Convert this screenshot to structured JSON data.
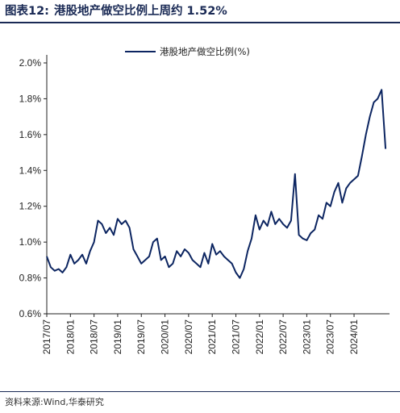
{
  "figure": {
    "label": "图表12:",
    "title": "港股地产做空比例上周约 1.52%",
    "source": "资料来源:Wind,华泰研究"
  },
  "colors": {
    "line": "#0c2561",
    "axis": "#222222",
    "title": "#1a2a55"
  },
  "chart_data": {
    "type": "line",
    "title": "",
    "xlabel": "",
    "ylabel": "",
    "ylim": [
      0.6,
      2.0
    ],
    "y_tick_labels": [
      "0.6%",
      "0.8%",
      "1.0%",
      "1.2%",
      "1.4%",
      "1.6%",
      "1.8%",
      "2.0%"
    ],
    "y_ticks": [
      0.6,
      0.8,
      1.0,
      1.2,
      1.4,
      1.6,
      1.8,
      2.0
    ],
    "x_tick_labels": [
      "2017/07",
      "2018/01",
      "2018/07",
      "2019/01",
      "2019/07",
      "2020/01",
      "2020/07",
      "2021/01",
      "2021/07",
      "2022/01",
      "2022/07",
      "2023/01",
      "2023/07",
      "2024/01"
    ],
    "xlim": [
      "2017-07",
      "2024-10"
    ],
    "grid": false,
    "legend_position": "top-center",
    "series": [
      {
        "name": "港股地产做空比例(%)",
        "x": [
          "2017-07",
          "2017-08",
          "2017-09",
          "2017-10",
          "2017-11",
          "2017-12",
          "2018-01",
          "2018-02",
          "2018-03",
          "2018-04",
          "2018-05",
          "2018-06",
          "2018-07",
          "2018-08",
          "2018-09",
          "2018-10",
          "2018-11",
          "2018-12",
          "2019-01",
          "2019-02",
          "2019-03",
          "2019-04",
          "2019-05",
          "2019-06",
          "2019-07",
          "2019-08",
          "2019-09",
          "2019-10",
          "2019-11",
          "2019-12",
          "2020-01",
          "2020-02",
          "2020-03",
          "2020-04",
          "2020-05",
          "2020-06",
          "2020-07",
          "2020-08",
          "2020-09",
          "2020-10",
          "2020-11",
          "2020-12",
          "2021-01",
          "2021-02",
          "2021-03",
          "2021-04",
          "2021-05",
          "2021-06",
          "2021-07",
          "2021-08",
          "2021-09",
          "2021-10",
          "2021-11",
          "2021-12",
          "2022-01",
          "2022-02",
          "2022-03",
          "2022-04",
          "2022-05",
          "2022-06",
          "2022-07",
          "2022-08",
          "2022-09",
          "2022-10",
          "2022-11",
          "2022-12",
          "2023-01",
          "2023-02",
          "2023-03",
          "2023-04",
          "2023-05",
          "2023-06",
          "2023-07",
          "2023-08",
          "2023-09",
          "2023-10",
          "2023-11",
          "2023-12",
          "2024-01",
          "2024-02",
          "2024-03",
          "2024-04",
          "2024-05",
          "2024-06",
          "2024-07",
          "2024-08",
          "2024-09"
        ],
        "values": [
          0.92,
          0.86,
          0.84,
          0.85,
          0.83,
          0.86,
          0.93,
          0.88,
          0.9,
          0.93,
          0.88,
          0.95,
          1.0,
          1.12,
          1.1,
          1.05,
          1.08,
          1.04,
          1.13,
          1.1,
          1.12,
          1.08,
          0.96,
          0.92,
          0.88,
          0.9,
          0.92,
          1.0,
          1.02,
          0.9,
          0.92,
          0.86,
          0.88,
          0.95,
          0.92,
          0.96,
          0.94,
          0.9,
          0.88,
          0.86,
          0.94,
          0.88,
          0.99,
          0.93,
          0.95,
          0.92,
          0.9,
          0.88,
          0.83,
          0.8,
          0.85,
          0.95,
          1.02,
          1.15,
          1.07,
          1.12,
          1.09,
          1.17,
          1.1,
          1.13,
          1.1,
          1.08,
          1.12,
          1.38,
          1.04,
          1.02,
          1.01,
          1.05,
          1.07,
          1.15,
          1.13,
          1.22,
          1.2,
          1.28,
          1.33,
          1.22,
          1.3,
          1.33,
          1.35,
          1.37,
          1.48,
          1.6,
          1.7,
          1.78,
          1.8,
          1.85,
          1.52
        ]
      }
    ]
  }
}
